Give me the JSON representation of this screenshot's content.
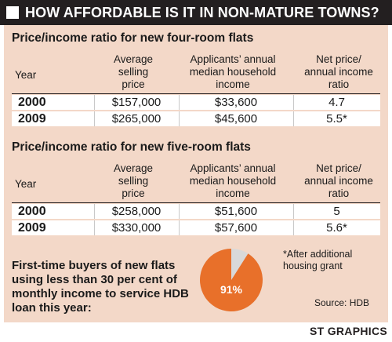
{
  "title": "HOW AFFORDABLE IS IT IN NON-MATURE TOWNS?",
  "tables": [
    {
      "title": "Price/income ratio for new four-room flats",
      "headers": {
        "year": "Year",
        "price": [
          "Average",
          "selling",
          "price"
        ],
        "income": [
          "Applicants’ annual",
          "median household",
          "income"
        ],
        "ratio": [
          "Net price/",
          "annual income",
          "ratio"
        ]
      },
      "rows": [
        {
          "year": "2000",
          "price": "$157,000",
          "income": "$33,600",
          "ratio": "4.7"
        },
        {
          "year": "2009",
          "price": "$265,000",
          "income": "$45,600",
          "ratio": "5.5*"
        }
      ]
    },
    {
      "title": "Price/income ratio for new five-room flats",
      "headers": {
        "year": "Year",
        "price": [
          "Average",
          "selling",
          "price"
        ],
        "income": [
          "Applicants’ annual",
          "median household",
          "income"
        ],
        "ratio": [
          "Net price/",
          "annual income",
          "ratio"
        ]
      },
      "rows": [
        {
          "year": "2000",
          "price": "$258,000",
          "income": "$51,600",
          "ratio": "5"
        },
        {
          "year": "2009",
          "price": "$330,000",
          "income": "$57,600",
          "ratio": "5.6*"
        }
      ]
    }
  ],
  "buyers_text": "First-time buyers of new flats using less than 30 per cent of monthly income to service HDB loan this year:",
  "pie": {
    "label": "91%",
    "value": 91,
    "color": "#e8702a",
    "rest_color": "#d9d9d9"
  },
  "footnote": "*After additional housing grant",
  "source": "Source: HDB",
  "credit": "ST GRAPHICS",
  "colors": {
    "panel": "#f3d8c8",
    "title_bar": "#231f20"
  }
}
